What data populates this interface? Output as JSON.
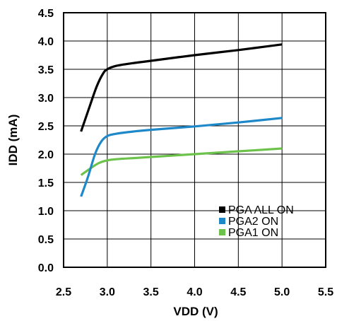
{
  "chart_data": {
    "type": "line",
    "title": "",
    "xlabel": "VDD (V)",
    "ylabel": "IDD (mA)",
    "xlim": [
      2.5,
      5.5
    ],
    "ylim": [
      0,
      4.5
    ],
    "xticks": [
      "2.5",
      "3.0",
      "3.5",
      "4.0",
      "4.5",
      "5.0",
      "5.5"
    ],
    "yticks": [
      "0.0",
      "0.5",
      "1.0",
      "1.5",
      "2.0",
      "2.5",
      "3.0",
      "3.5",
      "4.0",
      "4.5"
    ],
    "grid": true,
    "legend_position": "bottom-right",
    "series": [
      {
        "name": "PGA ALL ON",
        "color": "#000000",
        "points": [
          [
            2.7,
            2.4
          ],
          [
            2.8,
            2.85
          ],
          [
            2.88,
            3.2
          ],
          [
            2.95,
            3.42
          ],
          [
            3.0,
            3.5
          ],
          [
            3.1,
            3.56
          ],
          [
            3.3,
            3.61
          ],
          [
            3.5,
            3.65
          ],
          [
            4.0,
            3.75
          ],
          [
            4.5,
            3.84
          ],
          [
            5.0,
            3.94
          ]
        ]
      },
      {
        "name": "PGA2 ON",
        "color": "#1E88C8",
        "points": [
          [
            2.7,
            1.25
          ],
          [
            2.78,
            1.6
          ],
          [
            2.86,
            2.0
          ],
          [
            2.93,
            2.22
          ],
          [
            3.0,
            2.32
          ],
          [
            3.1,
            2.36
          ],
          [
            3.3,
            2.4
          ],
          [
            3.5,
            2.43
          ],
          [
            4.0,
            2.49
          ],
          [
            4.5,
            2.56
          ],
          [
            5.0,
            2.64
          ]
        ]
      },
      {
        "name": "PGA1 ON",
        "color": "#6CC24A",
        "points": [
          [
            2.7,
            1.63
          ],
          [
            2.8,
            1.74
          ],
          [
            2.9,
            1.84
          ],
          [
            3.0,
            1.89
          ],
          [
            3.1,
            1.91
          ],
          [
            3.3,
            1.93
          ],
          [
            3.5,
            1.95
          ],
          [
            4.0,
            2.0
          ],
          [
            4.5,
            2.05
          ],
          [
            5.0,
            2.1
          ]
        ]
      }
    ]
  }
}
